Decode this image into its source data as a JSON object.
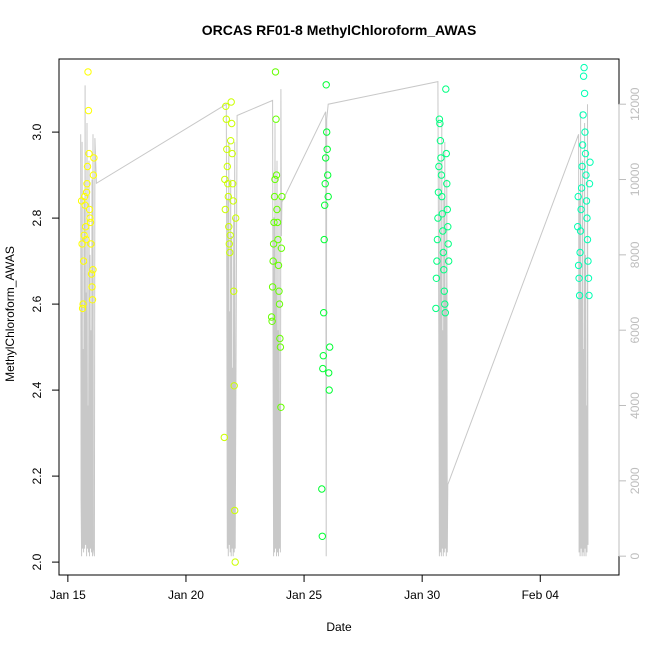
{
  "chart_data": {
    "type": "scatter",
    "title": "ORCAS RF01-8 MethylChloroform_AWAS",
    "xlabel": "Date",
    "ylabel": "MethylChloroform_AWAS",
    "xlim": [
      "2016-01-14T15:00",
      "2016-02-07T08:00"
    ],
    "ylim": [
      1.97,
      3.17
    ],
    "x_ticks": [
      {
        "date": "2016-01-15",
        "label": "Jan 15"
      },
      {
        "date": "2016-01-20",
        "label": "Jan 20"
      },
      {
        "date": "2016-01-25",
        "label": "Jan 25"
      },
      {
        "date": "2016-01-30",
        "label": "Jan 30"
      },
      {
        "date": "2016-02-04",
        "label": "Feb 04"
      }
    ],
    "y_ticks": [
      "2.0",
      "2.2",
      "2.4",
      "2.6",
      "2.8",
      "3.0"
    ],
    "y2_ticks": [
      "0",
      "2000",
      "4000",
      "6000",
      "8000",
      "10000",
      "12000"
    ],
    "y2lim": [
      -500,
      13200
    ],
    "grid": false,
    "series": [
      {
        "color": "#ffff00",
        "points": [
          [
            "2016-01-15T14:00",
            2.84
          ],
          [
            "2016-01-15T14:30",
            2.74
          ],
          [
            "2016-01-15T15:00",
            2.59
          ],
          [
            "2016-01-15T15:30",
            2.6
          ],
          [
            "2016-01-15T16:00",
            2.7
          ],
          [
            "2016-01-15T16:30",
            2.76
          ],
          [
            "2016-01-15T17:00",
            2.85
          ],
          [
            "2016-01-15T17:30",
            2.83
          ],
          [
            "2016-01-15T18:00",
            2.78
          ],
          [
            "2016-01-15T18:30",
            2.75
          ],
          [
            "2016-01-15T19:00",
            2.86
          ],
          [
            "2016-01-15T19:30",
            2.88
          ],
          [
            "2016-01-15T20:00",
            2.92
          ],
          [
            "2016-01-15T20:30",
            3.14
          ],
          [
            "2016-01-15T21:00",
            3.05
          ],
          [
            "2016-01-15T21:30",
            2.95
          ],
          [
            "2016-01-15T22:00",
            2.82
          ],
          [
            "2016-01-15T22:30",
            2.8
          ],
          [
            "2016-01-15T23:00",
            2.79
          ],
          [
            "2016-01-15T23:30",
            2.74
          ],
          [
            "2016-01-16T00:00",
            2.67
          ],
          [
            "2016-01-16T00:30",
            2.64
          ],
          [
            "2016-01-16T01:00",
            2.61
          ],
          [
            "2016-01-16T01:30",
            2.68
          ],
          [
            "2016-01-16T02:00",
            2.9
          ],
          [
            "2016-01-16T02:30",
            2.94
          ]
        ]
      },
      {
        "color": "#ccff00",
        "points": [
          [
            "2016-01-21T15:00",
            2.29
          ],
          [
            "2016-01-21T15:30",
            2.89
          ],
          [
            "2016-01-21T16:00",
            2.82
          ],
          [
            "2016-01-21T16:30",
            3.06
          ],
          [
            "2016-01-21T17:00",
            3.03
          ],
          [
            "2016-01-21T17:30",
            2.96
          ],
          [
            "2016-01-21T18:00",
            2.92
          ],
          [
            "2016-01-21T18:30",
            2.88
          ],
          [
            "2016-01-21T19:00",
            2.85
          ],
          [
            "2016-01-21T19:30",
            2.78
          ],
          [
            "2016-01-21T20:00",
            2.74
          ],
          [
            "2016-01-21T20:30",
            2.72
          ],
          [
            "2016-01-21T21:00",
            2.76
          ],
          [
            "2016-01-21T21:30",
            2.98
          ],
          [
            "2016-01-21T22:00",
            3.07
          ],
          [
            "2016-01-21T22:30",
            3.02
          ],
          [
            "2016-01-21T23:00",
            2.95
          ],
          [
            "2016-01-21T23:30",
            2.88
          ],
          [
            "2016-01-22T00:00",
            2.84
          ],
          [
            "2016-01-22T00:30",
            2.63
          ],
          [
            "2016-01-22T01:00",
            2.41
          ],
          [
            "2016-01-22T01:30",
            2.12
          ],
          [
            "2016-01-22T02:00",
            2.0
          ],
          [
            "2016-01-22T02:30",
            2.8
          ]
        ]
      },
      {
        "color": "#66ff00",
        "points": [
          [
            "2016-01-23T15:00",
            2.57
          ],
          [
            "2016-01-23T15:30",
            2.56
          ],
          [
            "2016-01-23T16:00",
            2.64
          ],
          [
            "2016-01-23T16:30",
            2.7
          ],
          [
            "2016-01-23T17:00",
            2.74
          ],
          [
            "2016-01-23T17:30",
            2.79
          ],
          [
            "2016-01-23T18:00",
            2.85
          ],
          [
            "2016-01-23T18:30",
            2.89
          ],
          [
            "2016-01-23T19:00",
            3.14
          ],
          [
            "2016-01-23T19:30",
            3.03
          ],
          [
            "2016-01-23T20:00",
            2.9
          ],
          [
            "2016-01-23T20:30",
            2.82
          ],
          [
            "2016-01-23T21:00",
            2.79
          ],
          [
            "2016-01-23T21:30",
            2.75
          ],
          [
            "2016-01-23T22:00",
            2.69
          ],
          [
            "2016-01-23T22:30",
            2.63
          ],
          [
            "2016-01-23T23:00",
            2.6
          ],
          [
            "2016-01-23T23:30",
            2.52
          ],
          [
            "2016-01-24T00:00",
            2.5
          ],
          [
            "2016-01-24T00:30",
            2.36
          ],
          [
            "2016-01-24T01:00",
            2.73
          ],
          [
            "2016-01-24T01:30",
            2.85
          ]
        ]
      },
      {
        "color": "#00ff33",
        "points": [
          [
            "2016-01-25T18:00",
            2.17
          ],
          [
            "2016-01-25T18:30",
            2.06
          ],
          [
            "2016-01-25T19:00",
            2.45
          ],
          [
            "2016-01-25T19:30",
            2.48
          ],
          [
            "2016-01-25T20:00",
            2.58
          ],
          [
            "2016-01-25T20:30",
            2.75
          ],
          [
            "2016-01-25T21:00",
            2.83
          ],
          [
            "2016-01-25T21:30",
            2.88
          ],
          [
            "2016-01-25T22:00",
            2.94
          ],
          [
            "2016-01-25T22:30",
            3.11
          ],
          [
            "2016-01-25T23:00",
            3.0
          ],
          [
            "2016-01-25T23:30",
            2.96
          ],
          [
            "2016-01-26T00:00",
            2.9
          ],
          [
            "2016-01-26T00:30",
            2.85
          ],
          [
            "2016-01-26T01:00",
            2.44
          ],
          [
            "2016-01-26T01:30",
            2.4
          ],
          [
            "2016-01-26T02:00",
            2.5
          ]
        ]
      },
      {
        "color": "#00ff80",
        "points": [
          [
            "2016-01-30T14:00",
            2.59
          ],
          [
            "2016-01-30T14:30",
            2.66
          ],
          [
            "2016-01-30T15:00",
            2.7
          ],
          [
            "2016-01-30T15:30",
            2.75
          ],
          [
            "2016-01-30T16:00",
            2.8
          ],
          [
            "2016-01-30T16:30",
            2.86
          ],
          [
            "2016-01-30T17:00",
            2.92
          ],
          [
            "2016-01-30T17:30",
            3.03
          ],
          [
            "2016-01-30T18:00",
            3.02
          ],
          [
            "2016-01-30T18:30",
            2.98
          ],
          [
            "2016-01-30T19:00",
            2.94
          ],
          [
            "2016-01-30T19:30",
            2.9
          ],
          [
            "2016-01-30T20:00",
            2.85
          ],
          [
            "2016-01-30T20:30",
            2.81
          ],
          [
            "2016-01-30T21:00",
            2.77
          ],
          [
            "2016-01-30T21:30",
            2.72
          ],
          [
            "2016-01-30T22:00",
            2.68
          ],
          [
            "2016-01-30T22:30",
            2.63
          ],
          [
            "2016-01-30T23:00",
            2.6
          ],
          [
            "2016-01-30T23:30",
            2.58
          ],
          [
            "2016-01-31T00:00",
            3.1
          ],
          [
            "2016-01-31T00:30",
            2.95
          ],
          [
            "2016-01-31T01:00",
            2.88
          ],
          [
            "2016-01-31T01:30",
            2.82
          ],
          [
            "2016-01-31T02:00",
            2.78
          ],
          [
            "2016-01-31T02:30",
            2.74
          ],
          [
            "2016-01-31T03:00",
            2.7
          ]
        ]
      },
      {
        "color": "#00ffb3",
        "points": [
          [
            "2016-02-05T14:00",
            2.78
          ],
          [
            "2016-02-05T14:30",
            2.85
          ],
          [
            "2016-02-05T15:00",
            2.69
          ],
          [
            "2016-02-05T15:30",
            2.66
          ],
          [
            "2016-02-05T16:00",
            2.62
          ],
          [
            "2016-02-05T16:30",
            2.72
          ],
          [
            "2016-02-05T17:00",
            2.77
          ],
          [
            "2016-02-05T17:30",
            2.82
          ],
          [
            "2016-02-05T18:00",
            2.87
          ],
          [
            "2016-02-05T18:30",
            2.92
          ],
          [
            "2016-02-05T19:00",
            2.97
          ],
          [
            "2016-02-05T19:30",
            3.04
          ],
          [
            "2016-02-05T20:00",
            3.13
          ],
          [
            "2016-02-05T20:30",
            3.15
          ],
          [
            "2016-02-05T21:00",
            3.09
          ],
          [
            "2016-02-05T21:30",
            3.0
          ],
          [
            "2016-02-05T22:00",
            2.95
          ],
          [
            "2016-02-05T22:30",
            2.9
          ],
          [
            "2016-02-05T23:00",
            2.84
          ],
          [
            "2016-02-05T23:30",
            2.8
          ],
          [
            "2016-02-06T00:00",
            2.75
          ],
          [
            "2016-02-06T00:30",
            2.7
          ],
          [
            "2016-02-06T01:00",
            2.66
          ],
          [
            "2016-02-06T01:30",
            2.62
          ],
          [
            "2016-02-06T02:00",
            2.88
          ],
          [
            "2016-02-06T02:30",
            2.93
          ]
        ]
      }
    ],
    "altitude_trace": {
      "color": "#c8c8c8",
      "points": [
        [
          "2016-01-15T13:00",
          11200
        ],
        [
          "2016-01-15T13:30",
          1500
        ],
        [
          "2016-01-15T14:00",
          0
        ],
        [
          "2016-01-15T14:30",
          11000
        ],
        [
          "2016-01-15T15:00",
          200
        ],
        [
          "2016-01-15T15:30",
          5500
        ],
        [
          "2016-01-15T16:00",
          100
        ],
        [
          "2016-01-15T16:30",
          9500
        ],
        [
          "2016-01-15T17:00",
          200
        ],
        [
          "2016-01-15T17:30",
          12500
        ],
        [
          "2016-01-15T18:00",
          300
        ],
        [
          "2016-01-15T18:30",
          7000
        ],
        [
          "2016-01-15T19:00",
          0
        ],
        [
          "2016-01-15T19:30",
          11500
        ],
        [
          "2016-01-15T20:00",
          200
        ],
        [
          "2016-01-15T20:30",
          4000
        ],
        [
          "2016-01-15T21:00",
          100
        ],
        [
          "2016-01-15T21:30",
          10500
        ],
        [
          "2016-01-15T22:00",
          0
        ],
        [
          "2016-01-15T22:30",
          8000
        ],
        [
          "2016-01-15T23:00",
          200
        ],
        [
          "2016-01-15T23:30",
          6000
        ],
        [
          "2016-01-16T00:00",
          100
        ],
        [
          "2016-01-16T00:30",
          10000
        ],
        [
          "2016-01-16T01:00",
          0
        ],
        [
          "2016-01-16T01:30",
          11200
        ],
        [
          "2016-01-16T02:00",
          200
        ],
        [
          "2016-01-16T03:00",
          0
        ],
        [
          "2016-01-16T03:30",
          11100
        ],
        [
          "2016-01-16T05:00",
          9900
        ],
        [
          "2016-01-21T17:00",
          12000
        ],
        [
          "2016-01-21T17:30",
          7000
        ],
        [
          "2016-01-21T18:00",
          200
        ],
        [
          "2016-01-21T18:30",
          9500
        ],
        [
          "2016-01-21T19:00",
          0
        ],
        [
          "2016-01-21T19:30",
          11000
        ],
        [
          "2016-01-21T20:00",
          300
        ],
        [
          "2016-01-21T20:30",
          6500
        ],
        [
          "2016-01-21T21:00",
          100
        ],
        [
          "2016-01-21T21:30",
          10000
        ],
        [
          "2016-01-21T22:00",
          0
        ],
        [
          "2016-01-21T22:30",
          8500
        ],
        [
          "2016-01-21T23:00",
          200
        ],
        [
          "2016-01-21T23:30",
          5000
        ],
        [
          "2016-01-22T00:00",
          0
        ],
        [
          "2016-01-22T00:30",
          9000
        ],
        [
          "2016-01-22T01:00",
          100
        ],
        [
          "2016-01-22T01:30",
          11000
        ],
        [
          "2016-01-22T02:00",
          200
        ],
        [
          "2016-01-22T04:00",
          11700
        ],
        [
          "2016-01-23T16:00",
          12100
        ],
        [
          "2016-01-23T16:30",
          5000
        ],
        [
          "2016-01-23T17:00",
          0
        ],
        [
          "2016-01-23T17:30",
          9000
        ],
        [
          "2016-01-23T18:00",
          100
        ],
        [
          "2016-01-23T18:30",
          11500
        ],
        [
          "2016-01-23T19:00",
          200
        ],
        [
          "2016-01-23T19:30",
          7000
        ],
        [
          "2016-01-23T20:00",
          0
        ],
        [
          "2016-01-23T20:30",
          10500
        ],
        [
          "2016-01-23T21:00",
          100
        ],
        [
          "2016-01-23T21:30",
          6000
        ],
        [
          "2016-01-23T22:00",
          0
        ],
        [
          "2016-01-23T22:30",
          9500
        ],
        [
          "2016-01-23T23:00",
          200
        ],
        [
          "2016-01-23T23:30",
          4000
        ],
        [
          "2016-01-24T00:00",
          100
        ],
        [
          "2016-01-24T00:30",
          12400
        ],
        [
          "2016-01-24T01:00",
          8500
        ],
        [
          "2016-01-24T01:30",
          9400
        ],
        [
          "2016-01-25T22:00",
          11800
        ],
        [
          "2016-01-25T22:30",
          0
        ],
        [
          "2016-01-25T23:00",
          11600
        ],
        [
          "2016-01-26T00:30",
          12000
        ],
        [
          "2016-01-30T16:00",
          12600
        ],
        [
          "2016-01-30T17:00",
          5000
        ],
        [
          "2016-01-30T17:30",
          0
        ],
        [
          "2016-01-30T18:00",
          10500
        ],
        [
          "2016-01-30T18:30",
          100
        ],
        [
          "2016-01-30T19:00",
          8000
        ],
        [
          "2016-01-30T19:30",
          0
        ],
        [
          "2016-01-30T20:00",
          11500
        ],
        [
          "2016-01-30T20:30",
          200
        ],
        [
          "2016-01-30T21:00",
          6000
        ],
        [
          "2016-01-30T21:30",
          0
        ],
        [
          "2016-01-30T22:00",
          9500
        ],
        [
          "2016-01-30T22:30",
          100
        ],
        [
          "2016-01-30T23:00",
          11000
        ],
        [
          "2016-01-30T23:30",
          200
        ],
        [
          "2016-01-31T00:00",
          7000
        ],
        [
          "2016-01-31T00:30",
          0
        ],
        [
          "2016-01-31T01:00",
          10000
        ],
        [
          "2016-01-31T01:30",
          100
        ],
        [
          "2016-01-31T02:00",
          1900
        ],
        [
          "2016-02-05T15:00",
          11200
        ],
        [
          "2016-02-05T15:30",
          100
        ],
        [
          "2016-02-05T16:00",
          9500
        ],
        [
          "2016-02-05T16:30",
          0
        ],
        [
          "2016-02-05T17:00",
          11800
        ],
        [
          "2016-02-05T17:30",
          200
        ],
        [
          "2016-02-05T18:00",
          7000
        ],
        [
          "2016-02-05T18:30",
          0
        ],
        [
          "2016-02-05T19:00",
          10500
        ],
        [
          "2016-02-05T19:30",
          100
        ],
        [
          "2016-02-05T20:00",
          5500
        ],
        [
          "2016-02-05T20:30",
          0
        ],
        [
          "2016-02-05T21:00",
          11500
        ],
        [
          "2016-02-05T21:30",
          200
        ],
        [
          "2016-02-05T22:00",
          8000
        ],
        [
          "2016-02-05T22:30",
          0
        ],
        [
          "2016-02-05T23:00",
          4000
        ],
        [
          "2016-02-05T23:30",
          100
        ],
        [
          "2016-02-06T00:00",
          12000
        ],
        [
          "2016-02-06T00:30",
          300
        ]
      ]
    }
  }
}
